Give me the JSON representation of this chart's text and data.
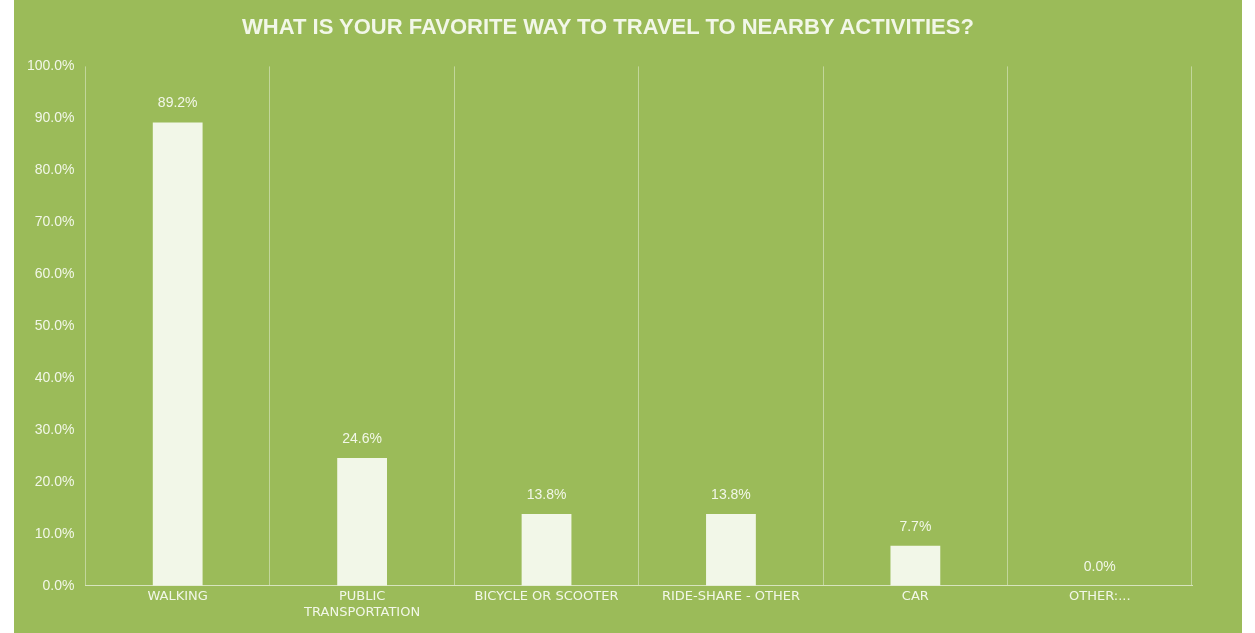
{
  "chart_data": {
    "type": "bar",
    "title": "WHAT IS YOUR FAVORITE WAY TO TRAVEL TO NEARBY ACTIVITIES?",
    "categories": [
      "WALKING",
      "PUBLIC TRANSPORTATION",
      "BICYCLE OR SCOOTER",
      "RIDE-SHARE - OTHER",
      "CAR",
      "OTHER:..."
    ],
    "values": [
      89.2,
      24.6,
      13.8,
      13.8,
      7.7,
      0.0
    ],
    "value_labels": [
      "89.2%",
      "24.6%",
      "13.8%",
      "13.8%",
      "7.7%",
      "0.0%"
    ],
    "color": "#f2f7e8",
    "ylim": [
      0,
      100
    ],
    "yticks": [
      {
        "value": 0,
        "label": "0.0%"
      },
      {
        "value": 10,
        "label": "10.0%"
      },
      {
        "value": 20,
        "label": "20.0%"
      },
      {
        "value": 30,
        "label": "30.0%"
      },
      {
        "value": 40,
        "label": "40.0%"
      },
      {
        "value": 50,
        "label": "50.0%"
      },
      {
        "value": 60,
        "label": "60.0%"
      },
      {
        "value": 70,
        "label": "70.0%"
      },
      {
        "value": 80,
        "label": "80.0%"
      },
      {
        "value": 90,
        "label": "90.0%"
      },
      {
        "value": 100,
        "label": "100.0%"
      }
    ],
    "grid": "x",
    "legend": false
  }
}
